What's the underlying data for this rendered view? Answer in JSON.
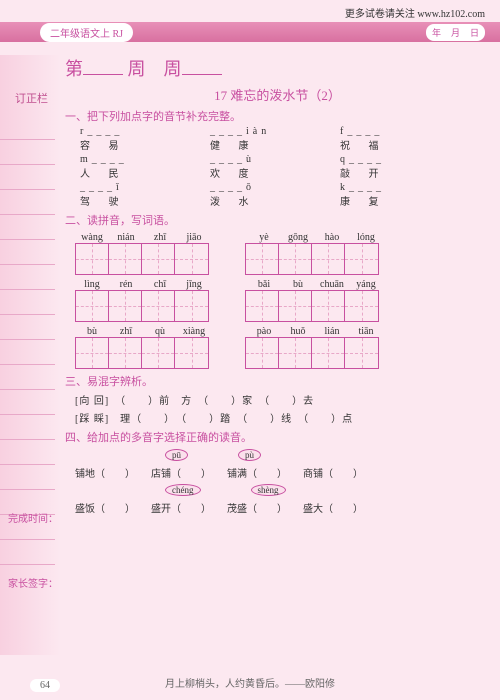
{
  "header_link": "更多试卷请关注 www.hz102.com",
  "grade_pill": "二年级语文上 RJ",
  "date": {
    "y": "年",
    "m": "月",
    "d": "日"
  },
  "sidebar_label": "订正栏",
  "week": {
    "prefix": "第",
    "mid": "周",
    "suffix": "周"
  },
  "lesson": "17  难忘的泼水节（2）",
  "section1": "一、把下列加点字的音节补充完整。",
  "q1": {
    "rows": [
      {
        "a": {
          "py": "r",
          "post": "",
          "hz": "容 易"
        },
        "b": {
          "py": "",
          "post": "iàn",
          "hz": "健 康"
        },
        "c": {
          "py": "f",
          "post": "",
          "hz": "祝 福"
        }
      },
      {
        "a": {
          "py": "m",
          "post": "",
          "hz": "人 民"
        },
        "b": {
          "py": "",
          "post": "ù",
          "hz": "欢 度"
        },
        "c": {
          "py": "q",
          "post": "",
          "hz": "敲 开"
        }
      },
      {
        "a": {
          "py": "",
          "post": "ǐ",
          "hz": "驾 驶"
        },
        "b": {
          "py": "",
          "post": "ō",
          "hz": "泼 水"
        },
        "c": {
          "py": "k",
          "post": "",
          "hz": "康 复"
        }
      }
    ]
  },
  "section2": "二、读拼音，写词语。",
  "pinyin_sets": [
    {
      "left": [
        "wàng",
        "nián",
        "zhī",
        "jiāo"
      ],
      "right": [
        "yè",
        "gōng",
        "hào",
        "lóng"
      ]
    },
    {
      "left": [
        "lìng",
        "rén",
        "chī",
        "jīng"
      ],
      "right": [
        "bǎi",
        "bù",
        "chuān",
        "yáng"
      ]
    },
    {
      "left": [
        "bù",
        "zhī",
        "qù",
        "xiàng"
      ],
      "right": [
        "pào",
        "huǒ",
        "lián",
        "tiān"
      ]
    }
  ],
  "section3": "三、易混字辨析。",
  "q3": [
    {
      "pair": "[向 回]",
      "items": [
        "（　　）前　方",
        "（　　）家",
        "（　　）去"
      ]
    },
    {
      "pair": "[踩 睬]",
      "items": [
        "理（　　）",
        "（　　）踏",
        "（　　）线",
        "（　　）点"
      ]
    }
  ],
  "side1": "完成时间：",
  "side2": "家长签字：",
  "section4": "四、给加点的多音字选择正确的读音。",
  "q4": {
    "set1": {
      "ovals": [
        "pū",
        "pù"
      ],
      "items": [
        "铺地（　　）",
        "店铺（　　）",
        "铺满（　　）",
        "商铺（　　）"
      ]
    },
    "set2": {
      "ovals": [
        "chéng",
        "shèng"
      ],
      "items": [
        "盛饭（　　）",
        "盛开（　　）",
        "茂盛（　　）",
        "盛大（　　）"
      ]
    }
  },
  "page_num": "64",
  "footer_quote": "月上柳梢头，人约黄昏后。——欧阳修"
}
